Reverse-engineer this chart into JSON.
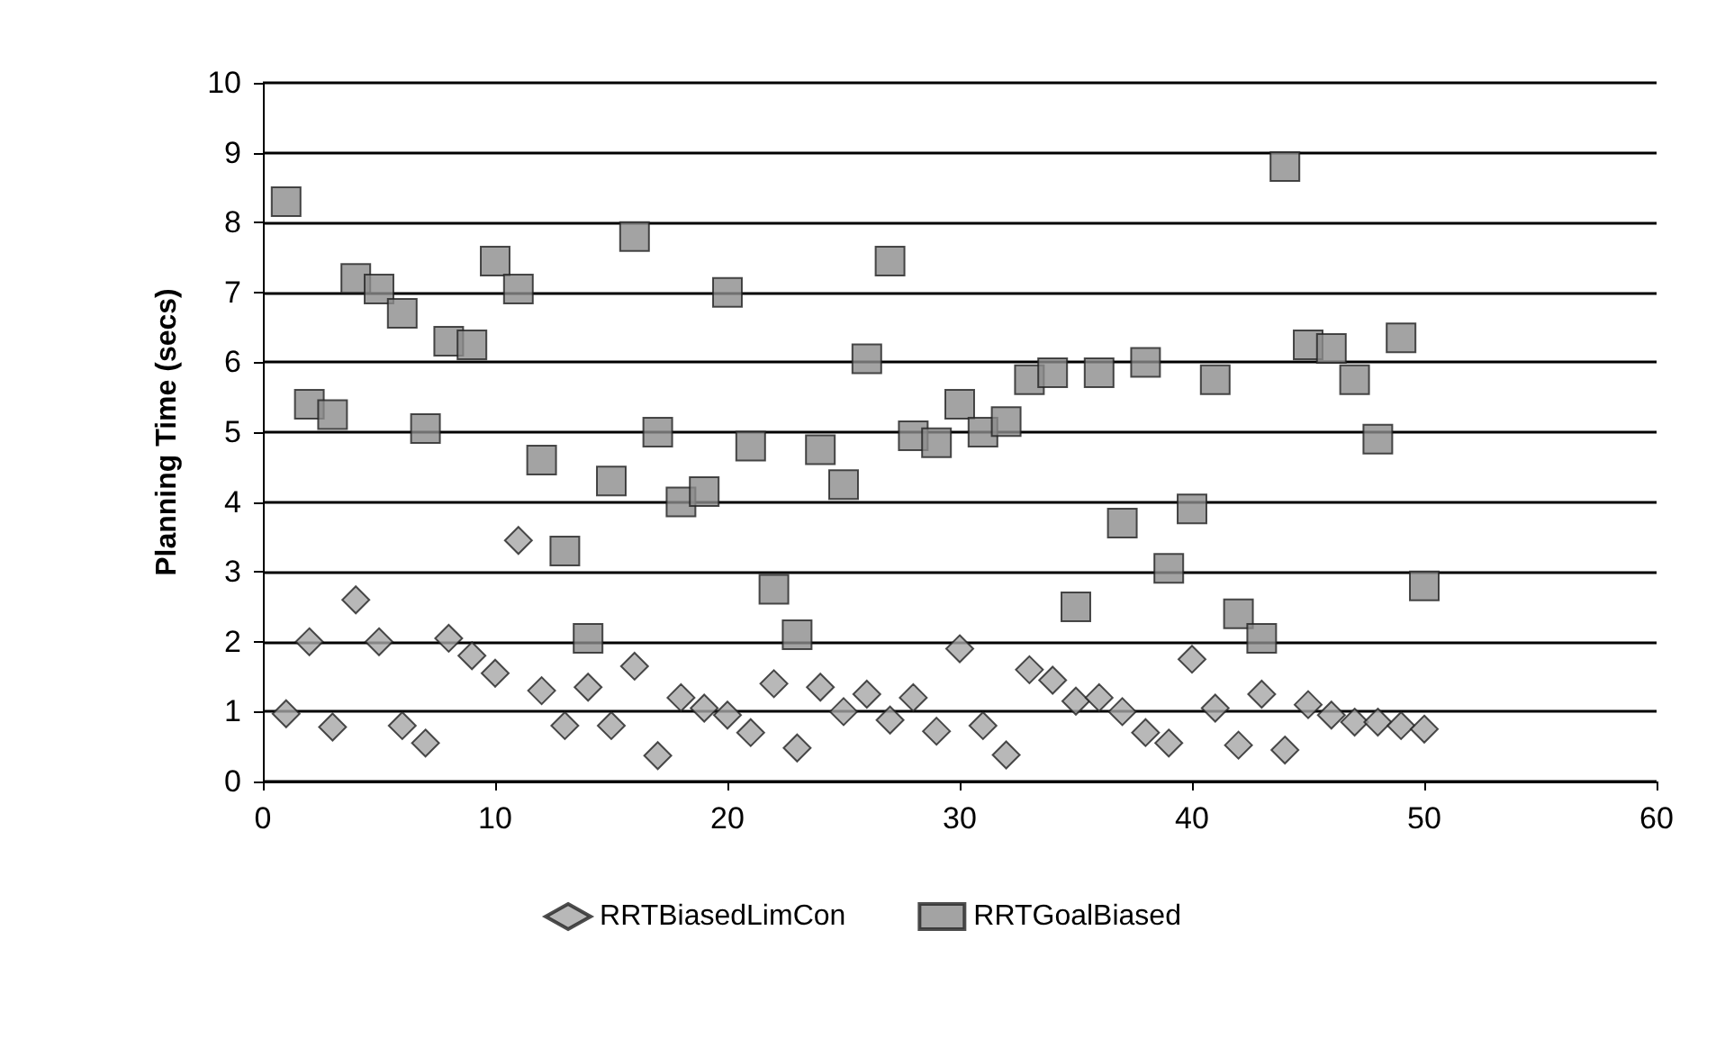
{
  "chart_data": {
    "type": "scatter",
    "ylabel": "Planning Time (secs)",
    "xlim": [
      0,
      60
    ],
    "xticks": [
      0,
      10,
      20,
      30,
      40,
      50,
      60
    ],
    "ylim": [
      0,
      10
    ],
    "yticks": [
      0,
      1,
      2,
      3,
      4,
      5,
      6,
      7,
      8,
      9,
      10
    ],
    "grid": "y",
    "legend": "bottom",
    "x": [
      1,
      2,
      3,
      4,
      5,
      6,
      7,
      8,
      9,
      10,
      11,
      12,
      13,
      14,
      15,
      16,
      17,
      18,
      19,
      20,
      21,
      22,
      23,
      24,
      25,
      26,
      27,
      28,
      29,
      30,
      31,
      32,
      33,
      34,
      35,
      36,
      37,
      38,
      39,
      40,
      41,
      42,
      43,
      44,
      45,
      46,
      47,
      48,
      49,
      50
    ],
    "series": [
      {
        "name": "RRTBiasedLimCon",
        "color": "#a6a6a6",
        "marker": "diamond",
        "values": [
          0.97,
          2.0,
          0.78,
          2.6,
          2.0,
          0.8,
          0.55,
          2.05,
          1.8,
          1.55,
          3.45,
          1.3,
          0.8,
          1.35,
          0.8,
          1.65,
          0.37,
          1.2,
          1.05,
          0.95,
          0.7,
          1.4,
          0.48,
          1.35,
          1.0,
          1.25,
          0.88,
          1.2,
          0.72,
          1.9,
          0.8,
          0.38,
          1.6,
          1.45,
          1.15,
          1.2,
          1.0,
          0.7,
          0.55,
          1.75,
          1.05,
          0.52,
          1.25,
          0.45,
          1.1,
          0.95,
          0.85,
          0.85,
          0.8,
          0.75
        ]
      },
      {
        "name": "RRTGoalBiased",
        "color": "#8c8c8c",
        "marker": "square",
        "values": [
          8.3,
          5.4,
          5.25,
          7.2,
          7.05,
          6.7,
          5.05,
          6.3,
          6.25,
          7.45,
          7.05,
          4.6,
          3.3,
          2.05,
          4.3,
          7.8,
          5.0,
          4.0,
          4.15,
          7.0,
          4.8,
          2.75,
          2.1,
          4.75,
          4.25,
          6.05,
          7.45,
          4.95,
          4.85,
          5.4,
          5.0,
          5.15,
          5.75,
          5.85,
          2.5,
          5.85,
          3.7,
          6.0,
          3.05,
          3.9,
          5.75,
          2.4,
          2.05,
          8.8,
          6.25,
          6.2,
          5.75,
          4.9,
          6.35,
          2.8
        ]
      }
    ]
  }
}
